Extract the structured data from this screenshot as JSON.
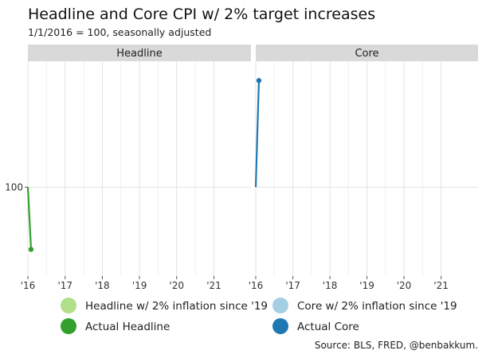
{
  "title": "Headline and Core CPI w/ 2% target increases",
  "subtitle": "1/1/2016 = 100, seasonally adjusted",
  "caption": "Source: BLS, FRED, @benbakkum.",
  "chart_data": {
    "type": "line",
    "facets": [
      "Headline",
      "Core"
    ],
    "x_ticks": [
      "'16",
      "'17",
      "'18",
      "'19",
      "'20",
      "'21"
    ],
    "xlim": [
      "2016-01-01",
      "2021-12-31"
    ],
    "y_ticks": [
      100
    ],
    "ylim": [
      99.4,
      100.85
    ],
    "grid": true,
    "legend_position": "bottom",
    "series": [
      {
        "name": "Headline w/ 2% inflation since '19",
        "facet": "Headline",
        "color": "#b2df8a",
        "dates": [],
        "values": []
      },
      {
        "name": "Actual Headline",
        "facet": "Headline",
        "color": "#33a02c",
        "dates": [
          "2016-01-01",
          "2016-02-01"
        ],
        "values": [
          100,
          99.58
        ]
      },
      {
        "name": "Core w/ 2% inflation since '19",
        "facet": "Core",
        "color": "#a6cee3",
        "dates": [],
        "values": []
      },
      {
        "name": "Actual Core",
        "facet": "Core",
        "color": "#1f78b4",
        "dates": [
          "2016-01-01",
          "2016-02-01"
        ],
        "values": [
          100,
          100.72
        ]
      }
    ],
    "legend": [
      {
        "label": "Headline w/ 2% inflation since '19",
        "color": "#b2df8a"
      },
      {
        "label": "Core w/ 2% inflation since '19",
        "color": "#a6cee3"
      },
      {
        "label": "Actual Headline",
        "color": "#33a02c"
      },
      {
        "label": "Actual Core",
        "color": "#1f78b4"
      }
    ]
  }
}
